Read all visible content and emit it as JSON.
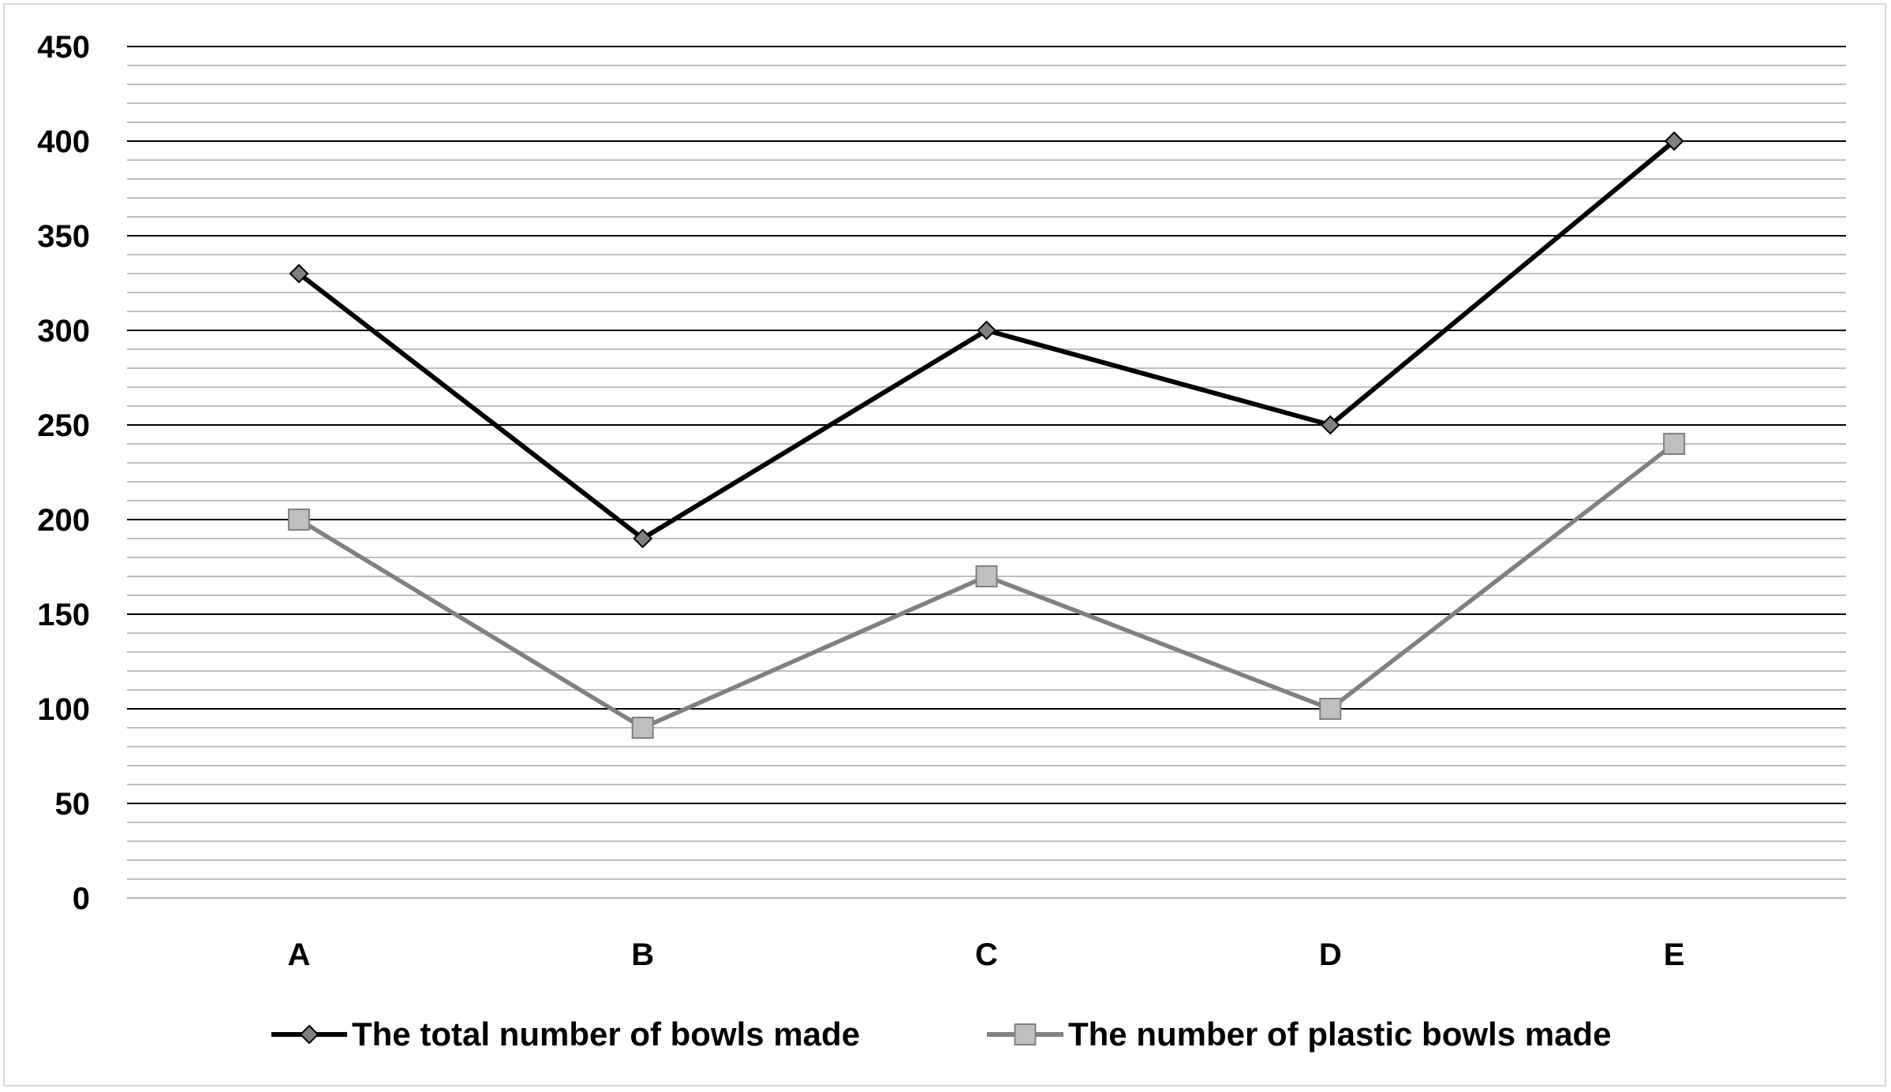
{
  "chart_data": {
    "type": "line",
    "title": "",
    "xlabel": "",
    "ylabel": "",
    "categories": [
      "A",
      "B",
      "C",
      "D",
      "E"
    ],
    "ylim": [
      0,
      450
    ],
    "yticks": [
      0,
      50,
      100,
      150,
      200,
      250,
      300,
      350,
      400,
      450
    ],
    "ytick_labels": [
      "0",
      "50",
      "100",
      "150",
      "200",
      "250",
      "300",
      "350",
      "400",
      "450"
    ],
    "major_grid_step": 50,
    "minor_grid_step": 10,
    "grid": true,
    "legend_position": "bottom",
    "series": [
      {
        "name": "The total number of bowls made",
        "values": [
          330,
          190,
          300,
          250,
          400
        ],
        "color": "#000000",
        "marker": "diamond",
        "marker_fill": "#808080"
      },
      {
        "name": "The number of plastic bowls made",
        "values": [
          200,
          90,
          170,
          100,
          240
        ],
        "color": "#808080",
        "marker": "square",
        "marker_fill": "#bfbfbf"
      }
    ]
  }
}
